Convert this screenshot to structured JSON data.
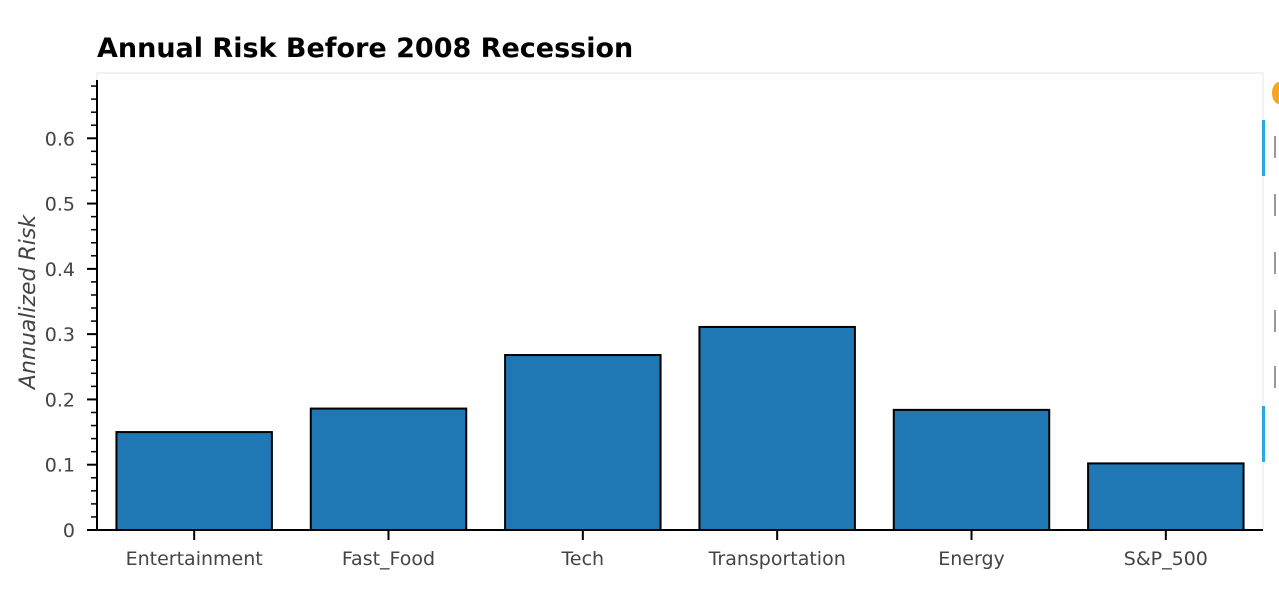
{
  "chart_data": {
    "type": "bar",
    "title": "Annual Risk Before 2008 Recession",
    "xlabel": "",
    "ylabel": "Annualized Risk",
    "categories": [
      "Entertainment",
      "Fast_Food",
      "Tech",
      "Transportation",
      "Energy",
      "S&P_500"
    ],
    "values": [
      0.15,
      0.186,
      0.268,
      0.311,
      0.184,
      0.102
    ],
    "ylim": [
      0,
      0.7
    ],
    "yticks": [
      "0",
      "0.1",
      "0.2",
      "0.3",
      "0.4",
      "0.5",
      "0.6"
    ],
    "grid": false,
    "legend": "none",
    "bar_color": "#1f77b4",
    "bar_edge_color": "#000000"
  },
  "toolbar": {
    "logo_color": "#f5a623",
    "active_color": "#26aae1",
    "tools": [
      "pan-icon",
      "box-zoom-icon",
      "wheel-zoom-icon",
      "save-icon",
      "reset-icon",
      "hover-icon"
    ]
  }
}
